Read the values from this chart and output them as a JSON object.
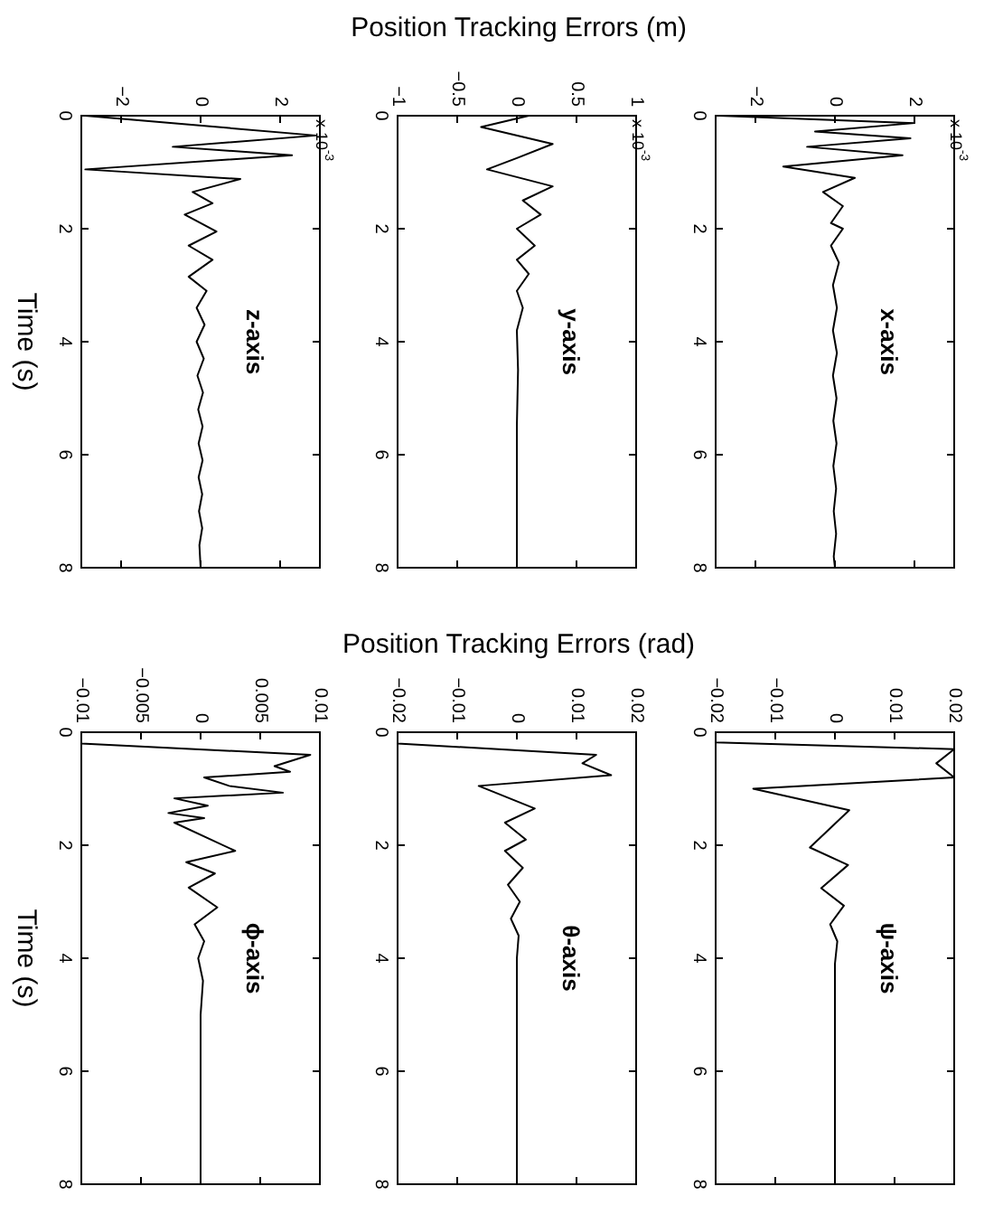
{
  "chart_data": [
    {
      "type": "line",
      "title": "z-axis",
      "ylabel": "Time (s)",
      "annotations": [
        "x 10$^{-3}$"
      ],
      "ylim": [
        8,
        0
      ],
      "yticks": [
        0,
        2,
        4,
        6,
        8
      ],
      "xlim": [
        -3,
        3
      ],
      "xticks": [
        -2,
        0,
        2
      ],
      "series": [
        {
          "color": "#000000",
          "values": [
            0,
            0.35,
            0.55,
            0.7,
            0.95,
            1.12,
            1.35,
            1.55,
            1.75,
            2.05,
            2.3,
            2.55,
            2.85,
            3.1,
            3.4,
            3.7,
            4.0,
            4.3,
            4.6,
            4.9,
            5.2,
            5.5,
            5.8,
            6.1,
            6.4,
            6.7,
            7.0,
            7.3,
            7.6,
            8
          ],
          "x": [
            -2.9,
            2.9,
            -0.7,
            2.3,
            -2.9,
            1.0,
            -0.2,
            0.3,
            -0.4,
            0.4,
            -0.3,
            0.3,
            -0.3,
            0.15,
            -0.1,
            0.1,
            -0.1,
            0.08,
            -0.08,
            0.06,
            -0.06,
            0.05,
            -0.05,
            0.05,
            -0.05,
            0.04,
            -0.04,
            0.04,
            -0.03,
            0
          ]
        }
      ]
    },
    {
      "type": "line",
      "title": "y-axis",
      "subtitle": "Position Tracking Errors (m)",
      "annotations": [
        "x 10$^{-3}$"
      ],
      "ylim": [
        8,
        0
      ],
      "yticks": [
        0,
        2,
        4,
        6,
        8
      ],
      "xlim": [
        -1,
        1
      ],
      "xticks": [
        -1,
        -0.5,
        0,
        0.5,
        1
      ],
      "series": [
        {
          "color": "#000000",
          "values": [
            0,
            0.2,
            0.5,
            0.75,
            0.95,
            1.25,
            1.5,
            1.75,
            2.0,
            2.3,
            2.55,
            2.8,
            3.1,
            3.4,
            3.8,
            4.5,
            5.5,
            6.5,
            8
          ],
          "x": [
            0.1,
            -0.3,
            0.3,
            0.0,
            -0.25,
            0.3,
            0.05,
            0.2,
            0.0,
            0.15,
            0.0,
            0.1,
            0.0,
            0.05,
            0.0,
            0.01,
            0,
            0,
            0
          ]
        }
      ]
    },
    {
      "type": "line",
      "title": "x-axis",
      "annotations": [
        "x 10$^{-3}$"
      ],
      "ylim": [
        8,
        0
      ],
      "yticks": [
        0,
        2,
        4,
        6,
        8
      ],
      "xlim": [
        -3,
        3
      ],
      "xticks": [
        -2,
        0,
        2
      ],
      "series": [
        {
          "color": "#000000",
          "values": [
            0,
            0.13,
            0.28,
            0.4,
            0.55,
            0.7,
            0.9,
            1.1,
            1.35,
            1.6,
            1.9,
            2.0,
            2.3,
            2.6,
            3.0,
            3.4,
            3.8,
            4.2,
            4.6,
            5.0,
            5.4,
            5.8,
            6.2,
            6.6,
            7.0,
            7.4,
            7.8,
            8
          ],
          "x": [
            -2.9,
            2.0,
            -0.5,
            1.9,
            -0.7,
            1.7,
            -1.3,
            0.5,
            -0.3,
            0.2,
            -0.1,
            0.2,
            -0.1,
            0.1,
            -0.05,
            0.05,
            -0.05,
            0.05,
            -0.05,
            0.04,
            -0.04,
            0.04,
            -0.04,
            0.03,
            -0.03,
            0.03,
            -0.03,
            0
          ]
        }
      ]
    },
    {
      "type": "line",
      "title": "ϕ-axis",
      "ylabel": "Time (s)",
      "ylim": [
        8,
        0
      ],
      "yticks": [
        0,
        2,
        4,
        6,
        8
      ],
      "xlim": [
        -0.01,
        0.01
      ],
      "xticks": [
        -0.01,
        -0.005,
        0,
        0.005,
        0.01
      ],
      "series": [
        {
          "color": "#000000",
          "values": [
            0,
            0.2,
            0.4,
            0.6,
            0.7,
            0.8,
            0.95,
            1.07,
            1.17,
            1.3,
            1.43,
            1.52,
            1.6,
            2.1,
            2.3,
            2.5,
            2.75,
            3.1,
            3.4,
            3.7,
            4.0,
            4.4,
            5,
            6,
            7,
            8
          ],
          "x": [
            -0.01,
            -0.01,
            0.0092,
            0.0062,
            0.0075,
            0.0003,
            0.0024,
            0.0069,
            -0.0022,
            0.0006,
            -0.0027,
            0.0003,
            -0.0022,
            0.0029,
            -0.0012,
            0.0012,
            -0.001,
            0.0014,
            -0.0005,
            0.0003,
            -0.0002,
            0.0002,
            0,
            0,
            0,
            0
          ]
        }
      ]
    },
    {
      "type": "line",
      "title": "θ-axis",
      "subtitle": "Position Tracking Errors (rad)",
      "ylim": [
        8,
        0
      ],
      "yticks": [
        0,
        2,
        4,
        6,
        8
      ],
      "xlim": [
        -0.02,
        0.02
      ],
      "xticks": [
        -0.02,
        -0.01,
        0,
        0.01,
        0.02
      ],
      "series": [
        {
          "color": "#000000",
          "values": [
            0,
            0.2,
            0.4,
            0.55,
            0.76,
            0.95,
            1.35,
            1.6,
            1.9,
            2.1,
            2.4,
            2.7,
            3.0,
            3.3,
            3.6,
            4.0,
            5,
            6,
            7,
            8
          ],
          "x": [
            -0.02,
            -0.02,
            0.0133,
            0.011,
            0.0158,
            -0.0064,
            0.003,
            -0.002,
            0.0015,
            -0.002,
            0.001,
            -0.0015,
            0.0005,
            -0.001,
            0.0003,
            0,
            0,
            0,
            0,
            0
          ]
        }
      ]
    },
    {
      "type": "line",
      "title": "ψ-axis",
      "ylim": [
        8,
        0
      ],
      "yticks": [
        0,
        2,
        4,
        6,
        8
      ],
      "xlim": [
        -0.02,
        0.02
      ],
      "xticks": [
        -0.02,
        -0.01,
        0,
        0.01,
        0.02
      ],
      "series": [
        {
          "color": "#000000",
          "values": [
            0,
            0.18,
            0.3,
            0.55,
            0.8,
            1.0,
            1.38,
            2.04,
            2.35,
            2.76,
            3.07,
            3.4,
            3.7,
            4.1,
            5,
            6,
            7,
            8
          ],
          "x": [
            -0.02,
            -0.02,
            0.02,
            0.017,
            0.02,
            -0.0137,
            0.0024,
            -0.0042,
            0.0022,
            -0.0023,
            0.0015,
            -0.0008,
            0.0004,
            0,
            0,
            0,
            0,
            0
          ]
        }
      ]
    }
  ]
}
